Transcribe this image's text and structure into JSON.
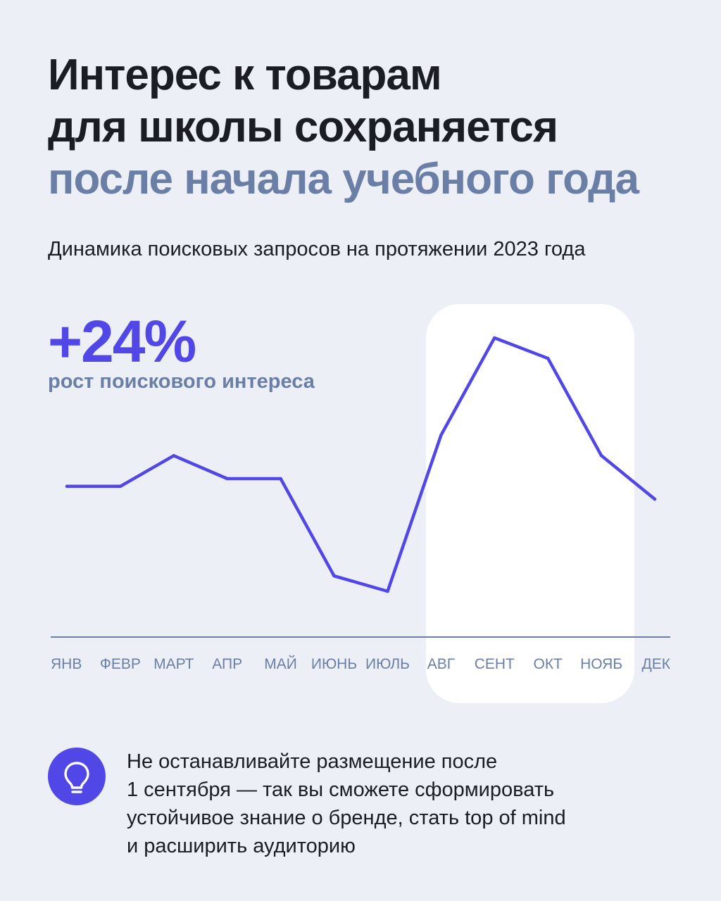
{
  "headline": {
    "line1": "Интерес к товарам",
    "line2": "для школы сохраняется",
    "line3": "после начала учебного года"
  },
  "stat": {
    "value": "+24%",
    "caption": "рост поискового интереса"
  },
  "tip": {
    "icon": "lightbulb-icon",
    "lines": [
      "Не останавливайте размещение после",
      "1 сентября — так вы сможете сформировать",
      "устойчивое знание о бренде, стать top of mind",
      "и расширить аудиторию"
    ]
  },
  "colors": {
    "background": "#eceff6",
    "line": "#5146e6",
    "accent_text": "#6b7fa6",
    "highlight": "#ffffff"
  },
  "chart_data": {
    "type": "line",
    "title": "Динамика поисковых запросов на протяжении 2023 года",
    "categories": [
      "ЯНВ",
      "ФЕВР",
      "МАРТ",
      "АПР",
      "МАЙ",
      "ИЮНЬ",
      "ИЮЛЬ",
      "АВГ",
      "СЕНТ",
      "ОКТ",
      "НОЯБ",
      "ДЕК"
    ],
    "series": [
      {
        "values": [
          60,
          60,
          72,
          63,
          63,
          25,
          19,
          80,
          118,
          110,
          72,
          55
        ]
      }
    ],
    "ylim": [
      0,
      130
    ],
    "highlight_range": [
      "АВГ",
      "НОЯБ"
    ],
    "grid": false,
    "xlabel": "",
    "ylabel": ""
  }
}
